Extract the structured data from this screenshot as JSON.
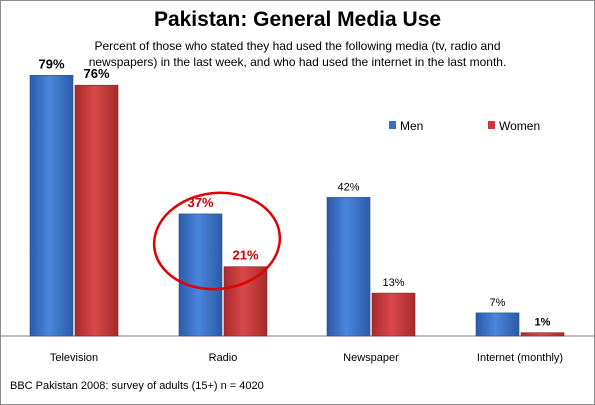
{
  "chart_data": {
    "type": "bar",
    "title": "Pakistan: General Media Use",
    "subtitle": "Percent of those who stated they had used the following media (tv, radio and newspapers) in the last week, and who had used the internet in the last month.",
    "source": "BBC Pakistan 2008: survey of adults (15+) n = 4020",
    "categories": [
      "Television",
      "Radio",
      "Newspaper",
      "Internet (monthly)"
    ],
    "series": [
      {
        "name": "Men",
        "values": [
          79,
          37,
          42,
          7
        ],
        "labels": [
          "79%",
          "37%",
          "42%",
          "7%"
        ],
        "color": "#3a6fc4"
      },
      {
        "name": "Women",
        "values": [
          76,
          21,
          13,
          1
        ],
        "labels": [
          "76%",
          "21%",
          "13%",
          "1%"
        ],
        "color": "#c8383a"
      }
    ],
    "ylim": [
      0,
      100
    ],
    "grid": false,
    "legend_position": "right",
    "highlight": {
      "category": "Radio",
      "shape": "ellipse",
      "color": "#e00000"
    }
  }
}
